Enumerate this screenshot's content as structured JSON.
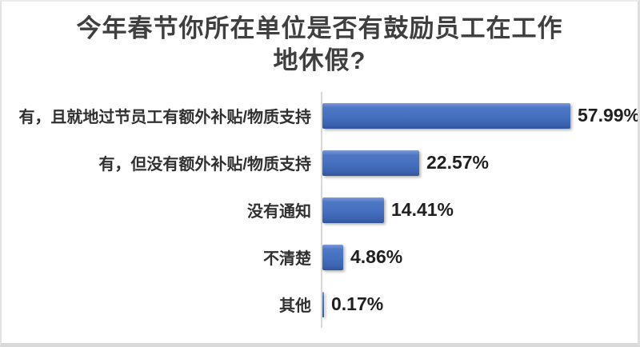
{
  "frame": {
    "background": "#ffffff",
    "border_color": "#d9d9d9"
  },
  "chart_data": {
    "type": "bar",
    "orientation": "horizontal",
    "title": "今年春节你所在单位是否有鼓励员工在工作地休假?",
    "title_lines": [
      "今年春节你所在单位是否有鼓励员工在工作",
      "地休假?"
    ],
    "categories": [
      "有，且就地过节员工有额外补贴/物质支持",
      "有，但没有额外补贴/物质支持",
      "没有通知",
      "不清楚",
      "其他"
    ],
    "values": [
      57.99,
      22.57,
      14.41,
      4.86,
      0.17
    ],
    "value_labels": [
      "57.99%",
      "22.57%",
      "14.41%",
      "4.86%",
      "0.17%"
    ],
    "xlim": [
      0,
      60
    ],
    "grid": false,
    "legend": "none",
    "bar_color": "#4472c4",
    "axis_color": "#d9d9d9",
    "title_color": "#3f3f3f",
    "label_color": "#303030",
    "value_color": "#1f1f1f"
  }
}
